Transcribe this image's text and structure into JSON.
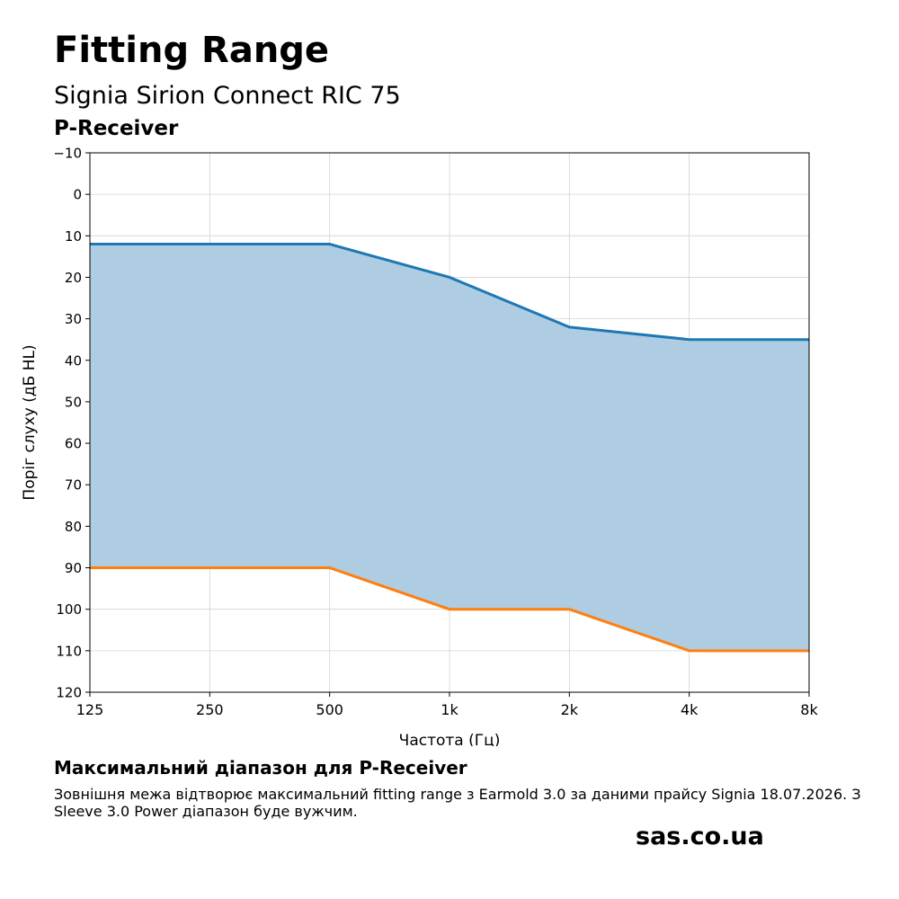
{
  "header": {
    "title": "Fitting Range",
    "subtitle": "Signia Sirion Connect RIC 75",
    "receiver": "P-Receiver"
  },
  "chart_data": {
    "type": "area",
    "categories": [
      "125",
      "250",
      "500",
      "1k",
      "2k",
      "4k",
      "8k"
    ],
    "series": [
      {
        "values": [
          12,
          12,
          12,
          20,
          32,
          35,
          35
        ],
        "color": "#1f77b4"
      },
      {
        "values": [
          90,
          90,
          90,
          100,
          100,
          110,
          110
        ],
        "color": "#ff7f0e"
      }
    ],
    "fill_color": "#aecde3",
    "xlabel": "Частота (Гц)",
    "ylabel": "Поріг слуху (дБ HL)",
    "ylim": [
      -10,
      120
    ],
    "y_inverted": true,
    "y_ticks": [
      -10,
      0,
      10,
      20,
      30,
      40,
      50,
      60,
      70,
      80,
      90,
      100,
      110,
      120
    ],
    "y_tick_labels": [
      "−10",
      "0",
      "10",
      "20",
      "30",
      "40",
      "50",
      "60",
      "70",
      "80",
      "90",
      "100",
      "110",
      "120"
    ],
    "grid": true
  },
  "footer": {
    "heading": "Максимальний діапазон для P-Receiver",
    "note": "Зовнішня межа відтворює максимальний fitting range з Earmold 3.0 за даними прайсу Signia 18.07.2026. З Sleeve 3.0 Power діапазон буде вужчим.",
    "brand": "sas.co.ua"
  }
}
